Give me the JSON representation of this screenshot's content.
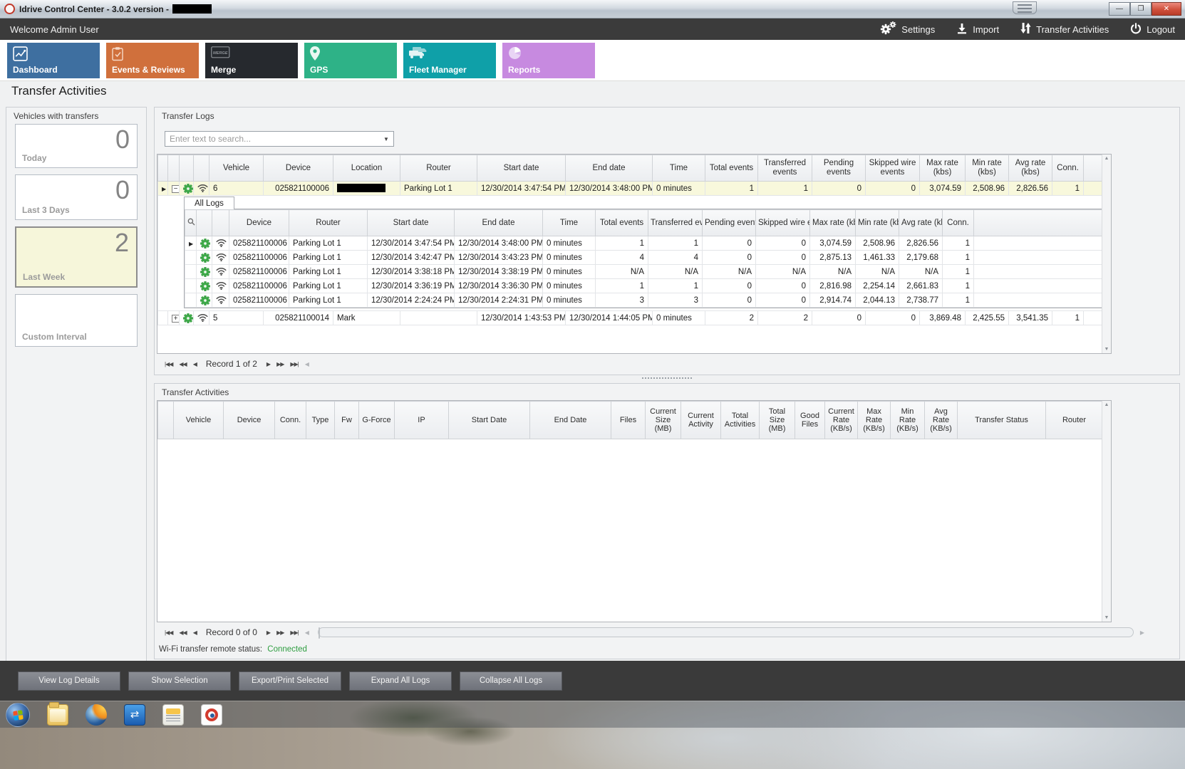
{
  "window": {
    "title": "Idrive Control Center - 3.0.2 version -"
  },
  "topbar": {
    "welcome": "Welcome Admin User",
    "actions": [
      {
        "label": "Settings",
        "icon": "gears-icon"
      },
      {
        "label": "Import",
        "icon": "import-icon"
      },
      {
        "label": "Transfer Activities",
        "icon": "transfer-arrows-icon"
      },
      {
        "label": "Logout",
        "icon": "power-icon"
      }
    ]
  },
  "nav_tiles": [
    {
      "label": "Dashboard",
      "icon": "line-chart-icon",
      "color": "#3e6fa0"
    },
    {
      "label": "Events & Reviews",
      "icon": "clipboard-check-icon",
      "color": "#d0703c"
    },
    {
      "label": "Merge",
      "icon": "merge-box-icon",
      "color": "#26292e"
    },
    {
      "label": "GPS",
      "icon": "map-pin-icon",
      "color": "#2eb287"
    },
    {
      "label": "Fleet Manager",
      "icon": "trucks-icon",
      "color": "#0fa0a8"
    },
    {
      "label": "Reports",
      "icon": "pie-chart-icon",
      "color": "#c78ae0"
    }
  ],
  "page_title": "Transfer Activities",
  "sidebar": {
    "title": "Vehicles with transfers",
    "cards": [
      {
        "label": "Today",
        "value": "0",
        "selected": false
      },
      {
        "label": "Last 3 Days",
        "value": "0",
        "selected": false
      },
      {
        "label": "Last Week",
        "value": "2",
        "selected": true
      },
      {
        "label": "Custom Interval",
        "value": "",
        "selected": false
      }
    ]
  },
  "transfer_logs": {
    "title": "Transfer Logs",
    "search_placeholder": "Enter text to search...",
    "columns": [
      "",
      "",
      "",
      "",
      "Vehicle",
      "Device",
      "Location",
      "Router",
      "Start date",
      "End date",
      "Time",
      "Total events",
      "Transferred events",
      "Pending events",
      "Skipped wire events",
      "Max rate (kbs)",
      "Min rate (kbs)",
      "Avg rate (kbs)",
      "Conn.",
      ""
    ],
    "rows": [
      {
        "vehicle": "6",
        "device": "025821100006",
        "location": "",
        "location_redacted": true,
        "router": "Parking Lot 1",
        "start": "12/30/2014 3:47:54 PM",
        "end": "12/30/2014 3:48:00 PM",
        "time": "0 minutes",
        "total": "1",
        "transferred": "1",
        "pending": "0",
        "skipped": "0",
        "max": "3,074.59",
        "min": "2,508.96",
        "avg": "2,826.56",
        "conn": "1",
        "expanded": true
      },
      {
        "vehicle": "5",
        "device": "025821100014",
        "location": "Mark",
        "router": "",
        "start": "12/30/2014 1:43:53 PM",
        "end": "12/30/2014 1:44:05 PM",
        "time": "0 minutes",
        "total": "2",
        "transferred": "2",
        "pending": "0",
        "skipped": "0",
        "max": "3,869.48",
        "min": "2,425.55",
        "avg": "3,541.35",
        "conn": "1",
        "expanded": false
      }
    ],
    "sub": {
      "tab": "All Logs",
      "columns": [
        "",
        "",
        "",
        "Device",
        "Router",
        "Start date",
        "End date",
        "Time",
        "Total events",
        "Transferred events",
        "Pending events",
        "Skipped wire events",
        "Max rate (kbs)",
        "Min rate (kbs)",
        "Avg rate (kbs)",
        "Conn.",
        ""
      ],
      "rows": [
        {
          "device": "025821100006",
          "router": "Parking Lot 1",
          "start": "12/30/2014 3:47:54 PM",
          "end": "12/30/2014 3:48:00 PM",
          "time": "0 minutes",
          "total": "1",
          "transferred": "1",
          "pending": "0",
          "skipped": "0",
          "max": "3,074.59",
          "min": "2,508.96",
          "avg": "2,826.56",
          "conn": "1",
          "current": true
        },
        {
          "device": "025821100006",
          "router": "Parking Lot 1",
          "start": "12/30/2014 3:42:47 PM",
          "end": "12/30/2014 3:43:23 PM",
          "time": "0 minutes",
          "total": "4",
          "transferred": "4",
          "pending": "0",
          "skipped": "0",
          "max": "2,875.13",
          "min": "1,461.33",
          "avg": "2,179.68",
          "conn": "1",
          "current": false
        },
        {
          "device": "025821100006",
          "router": "Parking Lot 1",
          "start": "12/30/2014 3:38:18 PM",
          "end": "12/30/2014 3:38:19 PM",
          "time": "0 minutes",
          "total": "N/A",
          "transferred": "N/A",
          "pending": "N/A",
          "skipped": "N/A",
          "max": "N/A",
          "min": "N/A",
          "avg": "N/A",
          "conn": "1",
          "current": false
        },
        {
          "device": "025821100006",
          "router": "Parking Lot 1",
          "start": "12/30/2014 3:36:19 PM",
          "end": "12/30/2014 3:36:30 PM",
          "time": "0 minutes",
          "total": "1",
          "transferred": "1",
          "pending": "0",
          "skipped": "0",
          "max": "2,816.98",
          "min": "2,254.14",
          "avg": "2,661.83",
          "conn": "1",
          "current": false
        },
        {
          "device": "025821100006",
          "router": "Parking Lot 1",
          "start": "12/30/2014 2:24:24 PM",
          "end": "12/30/2014 2:24:31 PM",
          "time": "0 minutes",
          "total": "3",
          "transferred": "3",
          "pending": "0",
          "skipped": "0",
          "max": "2,914.74",
          "min": "2,044.13",
          "avg": "2,738.77",
          "conn": "1",
          "current": false
        }
      ]
    },
    "record_nav": "Record 1 of 2"
  },
  "transfer_activities": {
    "title": "Transfer Activities",
    "columns": [
      "",
      "Vehicle",
      "Device",
      "Conn.",
      "Type",
      "Fw",
      "G-Force",
      "IP",
      "Start Date",
      "End Date",
      "Files",
      "Current Size (MB)",
      "Current Activity",
      "Total Activities",
      "Total Size (MB)",
      "Good Files",
      "Current Rate (KB/s)",
      "Max Rate (KB/s)",
      "Min Rate (KB/s)",
      "Avg Rate (KB/s)",
      "Transfer Status",
      "Router"
    ],
    "record_nav": "Record 0 of 0",
    "status_label": "Wi-Fi transfer remote status:",
    "status_value": "Connected",
    "status_color": "#2f9e41"
  },
  "footer_buttons": [
    "View Log Details",
    "Show Selection",
    "Export/Print Selected",
    "Expand All Logs",
    "Collapse All Logs"
  ]
}
